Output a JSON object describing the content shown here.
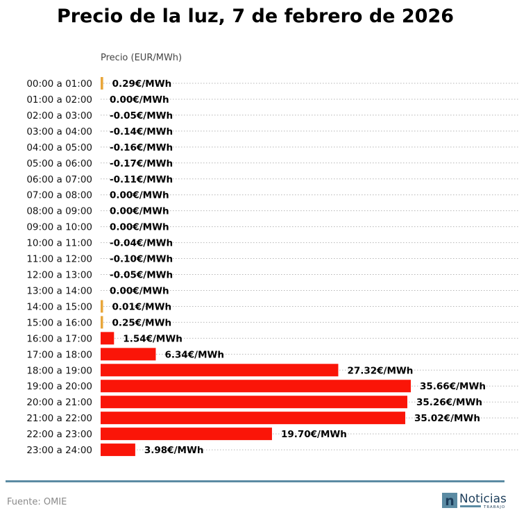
{
  "chart_data": {
    "type": "bar",
    "orientation": "horizontal",
    "title": "Precio de la luz, 7 de febrero de 2026",
    "ylabel": "Precio (EUR/MWh)",
    "value_suffix": "€/MWh",
    "categories": [
      "00:00 a 01:00",
      "01:00 a 02:00",
      "02:00 a 03:00",
      "03:00 a 04:00",
      "04:00 a 05:00",
      "05:00 a 06:00",
      "06:00 a 07:00",
      "07:00 a 08:00",
      "08:00 a 09:00",
      "09:00 a 10:00",
      "10:00 a 11:00",
      "11:00 a 12:00",
      "12:00 a 13:00",
      "13:00 a 14:00",
      "14:00 a 15:00",
      "15:00 a 16:00",
      "16:00 a 17:00",
      "17:00 a 18:00",
      "18:00 a 19:00",
      "19:00 a 20:00",
      "20:00 a 21:00",
      "21:00 a 22:00",
      "22:00 a 23:00",
      "23:00 a 24:00"
    ],
    "values": [
      0.29,
      0.0,
      -0.05,
      -0.14,
      -0.16,
      -0.17,
      -0.11,
      0.0,
      0.0,
      0.0,
      -0.04,
      -0.1,
      -0.05,
      0.0,
      0.01,
      0.25,
      1.54,
      6.34,
      27.32,
      35.66,
      35.26,
      35.02,
      19.7,
      3.98
    ],
    "xlim": [
      0,
      36
    ],
    "grid": true,
    "colors": {
      "high": "#fa1508",
      "low": "#e8a63a"
    }
  },
  "footer": {
    "source": "Fuente: OMIE",
    "logo_name": "Noticias",
    "logo_sub": "TRABAJO",
    "logo_glyph": "n",
    "rule_color": "#5b8ba3"
  }
}
